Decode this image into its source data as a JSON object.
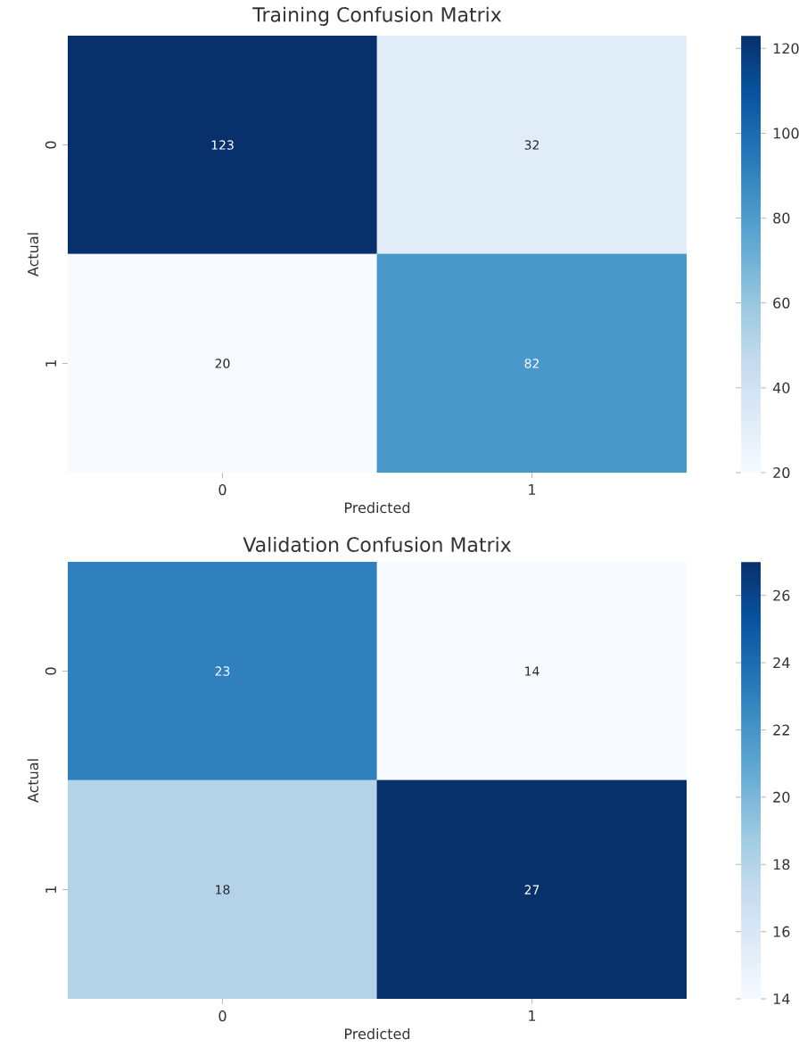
{
  "chart_data": [
    {
      "type": "heatmap",
      "title": "Training Confusion Matrix",
      "xlabel": "Predicted",
      "ylabel": "Actual",
      "categories": [
        "0",
        "1"
      ],
      "y_categories": [
        "0",
        "1"
      ],
      "cells": [
        [
          123,
          32
        ],
        [
          20,
          82
        ]
      ],
      "clim": [
        20,
        123
      ],
      "cticks": [
        20,
        40,
        60,
        80,
        100,
        120
      ],
      "data_labels": true
    },
    {
      "type": "heatmap",
      "title": "Validation Confusion Matrix",
      "xlabel": "Predicted",
      "ylabel": "Actual",
      "categories": [
        "0",
        "1"
      ],
      "y_categories": [
        "0",
        "1"
      ],
      "cells": [
        [
          23,
          14
        ],
        [
          18,
          27
        ]
      ],
      "clim": [
        14,
        27
      ],
      "cticks": [
        14,
        16,
        18,
        20,
        22,
        24,
        26
      ],
      "data_labels": true
    }
  ]
}
